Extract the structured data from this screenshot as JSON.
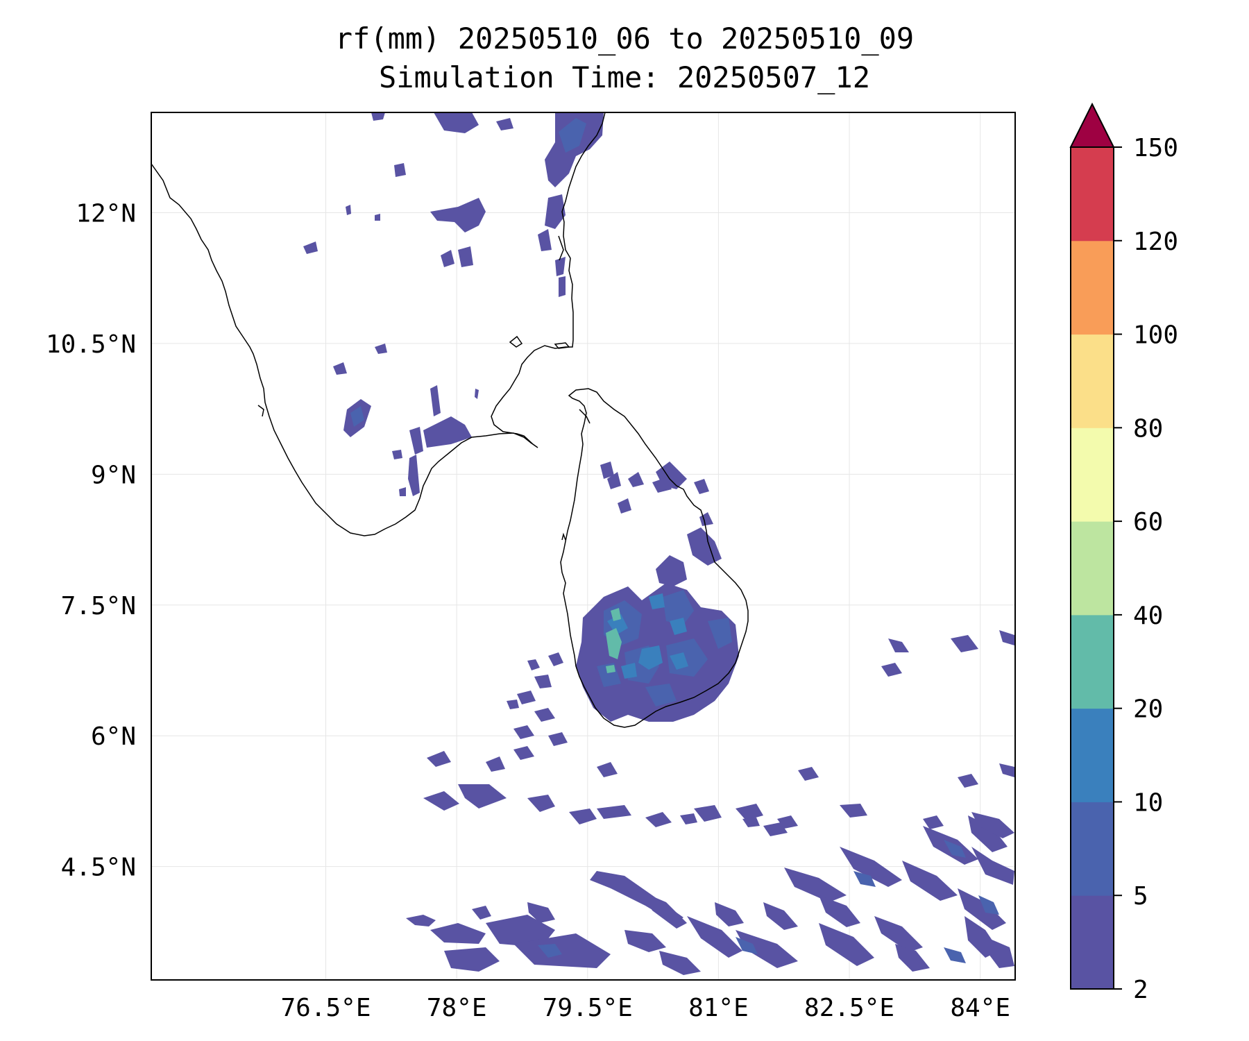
{
  "title": {
    "line1": "rf(mm) 20250510_06 to 20250510_09",
    "line2": "Simulation Time: 20250507_12"
  },
  "map": {
    "lon_range": [
      74.5,
      84.4
    ],
    "lat_range": [
      3.2,
      13.15
    ],
    "lon_ticks": [
      76.5,
      78,
      79.5,
      81,
      82.5,
      84
    ],
    "lon_tick_labels": [
      "76.5°E",
      "78°E",
      "79.5°E",
      "81°E",
      "82.5°E",
      "84°E"
    ],
    "lat_ticks": [
      12,
      10.5,
      9,
      7.5,
      6,
      4.5
    ],
    "lat_tick_labels": [
      "12°N",
      "10.5°N",
      "9°N",
      "7.5°N",
      "6°N",
      "4.5°N"
    ],
    "gridlines": true,
    "coastline_color": "#000000",
    "rain_colors": {
      "light": "#5953a3",
      "moderate": "#4a63ae",
      "heavy": "#3a80bd",
      "peak": "#62bba9"
    }
  },
  "colorbar": {
    "levels": [
      2,
      5,
      10,
      20,
      40,
      60,
      80,
      100,
      120,
      150
    ],
    "level_labels": [
      "2",
      "5",
      "10",
      "20",
      "40",
      "60",
      "80",
      "100",
      "120",
      "150"
    ],
    "colors": [
      "#5953a3",
      "#4a63ae",
      "#3a80bd",
      "#62bba9",
      "#bde5a0",
      "#f3fbad",
      "#fbdf89",
      "#f99d58",
      "#d53d4f"
    ],
    "extend_color": "#9e0142",
    "extend": "max"
  }
}
